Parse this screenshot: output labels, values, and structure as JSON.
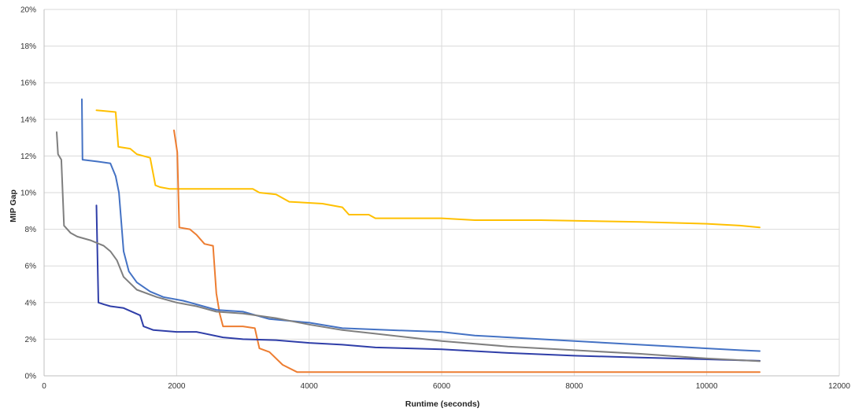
{
  "chart_data": {
    "type": "line",
    "xlabel": "Runtime (seconds)",
    "ylabel": "MIP Gap",
    "xlim": [
      0,
      12000
    ],
    "ylim": [
      0,
      20
    ],
    "x_ticks": [
      0,
      2000,
      4000,
      6000,
      8000,
      10000,
      12000
    ],
    "y_ticks": [
      0,
      2,
      4,
      6,
      8,
      10,
      12,
      14,
      16,
      18,
      20
    ],
    "y_tick_labels": [
      "0%",
      "2%",
      "4%",
      "6%",
      "8%",
      "10%",
      "12%",
      "14%",
      "16%",
      "18%",
      "20%"
    ],
    "grid": true,
    "legend": "none",
    "series": [
      {
        "color": "#ffc000",
        "points": [
          [
            790,
            14.5
          ],
          [
            1080,
            14.4
          ],
          [
            1120,
            12.5
          ],
          [
            1300,
            12.4
          ],
          [
            1400,
            12.1
          ],
          [
            1600,
            11.9
          ],
          [
            1680,
            10.4
          ],
          [
            1750,
            10.3
          ],
          [
            1900,
            10.2
          ],
          [
            2500,
            10.2
          ],
          [
            3150,
            10.2
          ],
          [
            3250,
            10.0
          ],
          [
            3500,
            9.9
          ],
          [
            3700,
            9.5
          ],
          [
            4200,
            9.4
          ],
          [
            4500,
            9.2
          ],
          [
            4600,
            8.8
          ],
          [
            4900,
            8.8
          ],
          [
            5000,
            8.6
          ],
          [
            6000,
            8.6
          ],
          [
            6500,
            8.5
          ],
          [
            7500,
            8.5
          ],
          [
            9000,
            8.4
          ],
          [
            10000,
            8.3
          ],
          [
            10500,
            8.2
          ],
          [
            10800,
            8.1
          ]
        ]
      },
      {
        "color": "#ed7d31",
        "points": [
          [
            1960,
            13.4
          ],
          [
            2010,
            12.2
          ],
          [
            2040,
            8.1
          ],
          [
            2200,
            8.0
          ],
          [
            2300,
            7.7
          ],
          [
            2420,
            7.2
          ],
          [
            2550,
            7.1
          ],
          [
            2600,
            4.5
          ],
          [
            2650,
            3.4
          ],
          [
            2700,
            2.7
          ],
          [
            3000,
            2.7
          ],
          [
            3180,
            2.6
          ],
          [
            3250,
            1.5
          ],
          [
            3400,
            1.3
          ],
          [
            3600,
            0.6
          ],
          [
            3820,
            0.2
          ],
          [
            5000,
            0.2
          ],
          [
            8000,
            0.2
          ],
          [
            10800,
            0.2
          ]
        ]
      },
      {
        "color": "#4472c4",
        "points": [
          [
            570,
            15.1
          ],
          [
            580,
            11.8
          ],
          [
            800,
            11.7
          ],
          [
            1000,
            11.6
          ],
          [
            1080,
            10.9
          ],
          [
            1130,
            10.0
          ],
          [
            1200,
            6.8
          ],
          [
            1280,
            5.7
          ],
          [
            1400,
            5.1
          ],
          [
            1600,
            4.6
          ],
          [
            1800,
            4.3
          ],
          [
            2100,
            4.1
          ],
          [
            2300,
            3.9
          ],
          [
            2600,
            3.6
          ],
          [
            3000,
            3.5
          ],
          [
            3400,
            3.1
          ],
          [
            4000,
            2.9
          ],
          [
            4500,
            2.6
          ],
          [
            5200,
            2.5
          ],
          [
            6000,
            2.4
          ],
          [
            6500,
            2.2
          ],
          [
            7500,
            2.0
          ],
          [
            8500,
            1.8
          ],
          [
            9500,
            1.6
          ],
          [
            10500,
            1.4
          ],
          [
            10800,
            1.35
          ]
        ]
      },
      {
        "color": "#2f3ea8",
        "points": [
          [
            790,
            9.3
          ],
          [
            820,
            4.0
          ],
          [
            900,
            3.9
          ],
          [
            1000,
            3.8
          ],
          [
            1200,
            3.7
          ],
          [
            1450,
            3.3
          ],
          [
            1500,
            2.7
          ],
          [
            1650,
            2.5
          ],
          [
            2000,
            2.4
          ],
          [
            2300,
            2.4
          ],
          [
            2700,
            2.1
          ],
          [
            3000,
            2.0
          ],
          [
            3500,
            1.95
          ],
          [
            4000,
            1.8
          ],
          [
            4500,
            1.7
          ],
          [
            5000,
            1.55
          ],
          [
            6000,
            1.45
          ],
          [
            7000,
            1.25
          ],
          [
            8000,
            1.1
          ],
          [
            9000,
            1.0
          ],
          [
            10000,
            0.9
          ],
          [
            10800,
            0.82
          ]
        ]
      },
      {
        "color": "#7f7f7f",
        "points": [
          [
            190,
            13.3
          ],
          [
            210,
            12.1
          ],
          [
            260,
            11.8
          ],
          [
            300,
            8.2
          ],
          [
            400,
            7.8
          ],
          [
            500,
            7.6
          ],
          [
            700,
            7.4
          ],
          [
            900,
            7.1
          ],
          [
            1000,
            6.8
          ],
          [
            1100,
            6.3
          ],
          [
            1200,
            5.4
          ],
          [
            1400,
            4.7
          ],
          [
            1700,
            4.3
          ],
          [
            2000,
            4.0
          ],
          [
            2300,
            3.8
          ],
          [
            2600,
            3.5
          ],
          [
            3000,
            3.4
          ],
          [
            3500,
            3.15
          ],
          [
            4000,
            2.8
          ],
          [
            4500,
            2.5
          ],
          [
            5000,
            2.3
          ],
          [
            6000,
            1.9
          ],
          [
            7000,
            1.6
          ],
          [
            8000,
            1.4
          ],
          [
            9000,
            1.2
          ],
          [
            10000,
            0.95
          ],
          [
            10800,
            0.8
          ]
        ]
      }
    ]
  }
}
